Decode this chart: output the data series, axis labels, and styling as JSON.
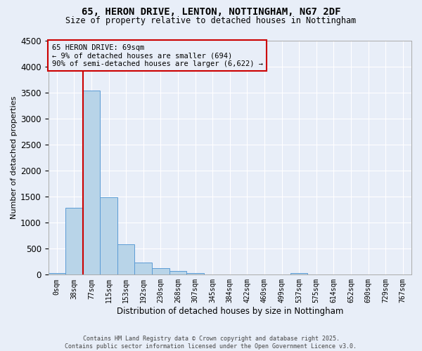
{
  "title_line1": "65, HERON DRIVE, LENTON, NOTTINGHAM, NG7 2DF",
  "title_line2": "Size of property relative to detached houses in Nottingham",
  "xlabel": "Distribution of detached houses by size in Nottingham",
  "ylabel": "Number of detached properties",
  "bar_labels": [
    "0sqm",
    "38sqm",
    "77sqm",
    "115sqm",
    "153sqm",
    "192sqm",
    "230sqm",
    "268sqm",
    "307sqm",
    "345sqm",
    "384sqm",
    "422sqm",
    "460sqm",
    "499sqm",
    "537sqm",
    "575sqm",
    "614sqm",
    "652sqm",
    "690sqm",
    "729sqm",
    "767sqm"
  ],
  "bar_values": [
    30,
    1290,
    3530,
    1490,
    590,
    230,
    120,
    75,
    30,
    5,
    0,
    0,
    0,
    0,
    30,
    0,
    0,
    0,
    0,
    0,
    0
  ],
  "bar_color": "#b8d4e8",
  "bar_edge_color": "#5b9bd5",
  "ylim": [
    0,
    4500
  ],
  "yticks": [
    0,
    500,
    1000,
    1500,
    2000,
    2500,
    3000,
    3500,
    4000,
    4500
  ],
  "marker_bar_index": 1,
  "marker_color": "#cc0000",
  "annotation_title": "65 HERON DRIVE: 69sqm",
  "annotation_line1": "← 9% of detached houses are smaller (694)",
  "annotation_line2": "90% of semi-detached houses are larger (6,622) →",
  "annotation_box_color": "#cc0000",
  "background_color": "#e8eef8",
  "grid_color": "#ffffff",
  "footer_line1": "Contains HM Land Registry data © Crown copyright and database right 2025.",
  "footer_line2": "Contains public sector information licensed under the Open Government Licence v3.0."
}
